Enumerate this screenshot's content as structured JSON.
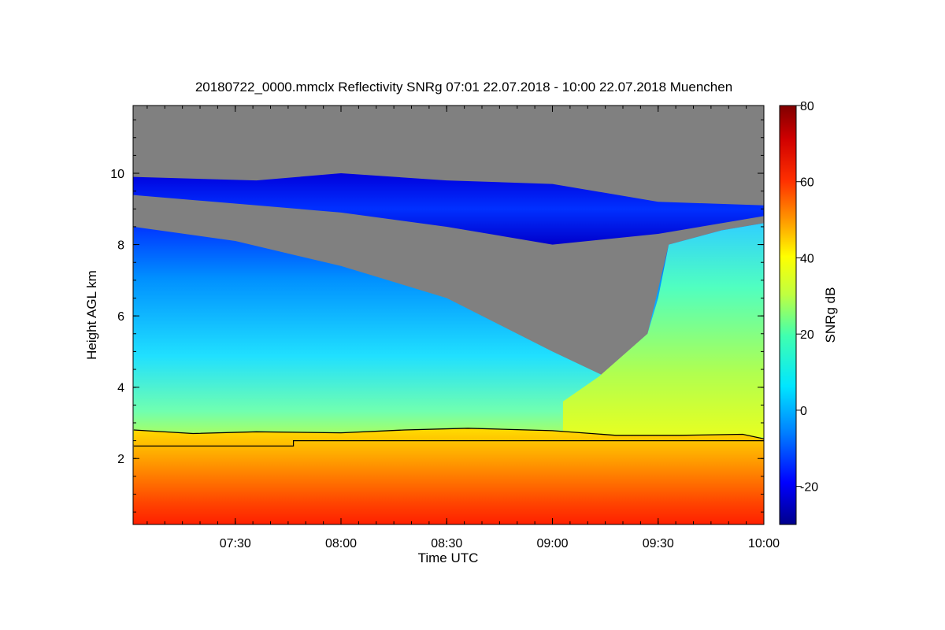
{
  "chart_data": {
    "type": "heatmap",
    "title": "20180722_0000.mmclx Reflectivity SNRg   07:01 22.07.2018 - 10:00 22.07.2018 Muenchen",
    "xlabel": "Time UTC",
    "ylabel": "Height AGL km",
    "colorbar_label": "SNRg dB",
    "x_range": [
      "07:01",
      "10:00"
    ],
    "xlim_hours": [
      7.0167,
      10.0
    ],
    "ylim": [
      0.15,
      11.9
    ],
    "x_ticks": [
      {
        "label": "07:30",
        "value": 7.5
      },
      {
        "label": "08:00",
        "value": 8.0
      },
      {
        "label": "08:30",
        "value": 8.5
      },
      {
        "label": "09:00",
        "value": 9.0
      },
      {
        "label": "09:30",
        "value": 9.5
      },
      {
        "label": "10:00",
        "value": 10.0
      }
    ],
    "y_ticks": [
      {
        "label": "2",
        "value": 2
      },
      {
        "label": "4",
        "value": 4
      },
      {
        "label": "6",
        "value": 6
      },
      {
        "label": "8",
        "value": 8
      },
      {
        "label": "10",
        "value": 10
      }
    ],
    "colorbar_range": [
      -30,
      80
    ],
    "colorbar_ticks": [
      {
        "label": "-20",
        "value": -20
      },
      {
        "label": "0",
        "value": 0
      },
      {
        "label": "20",
        "value": 20
      },
      {
        "label": "40",
        "value": 40
      },
      {
        "label": "60",
        "value": 60
      },
      {
        "label": "80",
        "value": 80
      }
    ],
    "no_signal_color": "#808080",
    "colormap": [
      "#00008c",
      "#0000ff",
      "#0080ff",
      "#00e6ff",
      "#40ffb0",
      "#c0ff40",
      "#ffff00",
      "#ffa000",
      "#ff3000",
      "#d00000",
      "#800000"
    ],
    "cloud_top_km": [
      {
        "t": 7.02,
        "h": 8.5
      },
      {
        "t": 7.5,
        "h": 8.1
      },
      {
        "t": 8.0,
        "h": 7.4
      },
      {
        "t": 8.5,
        "h": 6.5
      },
      {
        "t": 9.0,
        "h": 5.0
      },
      {
        "t": 9.25,
        "h": 4.3
      },
      {
        "t": 9.45,
        "h": 5.5
      },
      {
        "t": 9.55,
        "h": 8.0
      },
      {
        "t": 9.8,
        "h": 8.4
      },
      {
        "t": 10.0,
        "h": 8.6
      }
    ],
    "upper_layer_km": [
      {
        "t": 7.0,
        "base": 9.4,
        "top": 9.9
      },
      {
        "t": 7.6,
        "base": 9.1,
        "top": 9.8
      },
      {
        "t": 8.0,
        "base": 8.9,
        "top": 10.0
      },
      {
        "t": 8.5,
        "base": 8.5,
        "top": 9.8
      },
      {
        "t": 9.0,
        "base": 8.0,
        "top": 9.7
      },
      {
        "t": 9.5,
        "base": 8.3,
        "top": 9.2
      },
      {
        "t": 10.0,
        "base": 8.8,
        "top": 9.1
      }
    ],
    "melting_layer_km": [
      {
        "t": 7.02,
        "h": 2.8
      },
      {
        "t": 7.3,
        "h": 2.7
      },
      {
        "t": 7.6,
        "h": 2.75
      },
      {
        "t": 8.0,
        "h": 2.72
      },
      {
        "t": 8.3,
        "h": 2.8
      },
      {
        "t": 8.6,
        "h": 2.85
      },
      {
        "t": 9.0,
        "h": 2.78
      },
      {
        "t": 9.3,
        "h": 2.65
      },
      {
        "t": 9.6,
        "h": 2.65
      },
      {
        "t": 9.9,
        "h": 2.68
      },
      {
        "t": 10.0,
        "h": 2.55
      }
    ],
    "reference_line_km": [
      {
        "t": 7.02,
        "h": 2.35
      },
      {
        "t": 7.775,
        "h": 2.35
      },
      {
        "t": 7.775,
        "h": 2.5
      },
      {
        "t": 10.0,
        "h": 2.5
      }
    ]
  }
}
